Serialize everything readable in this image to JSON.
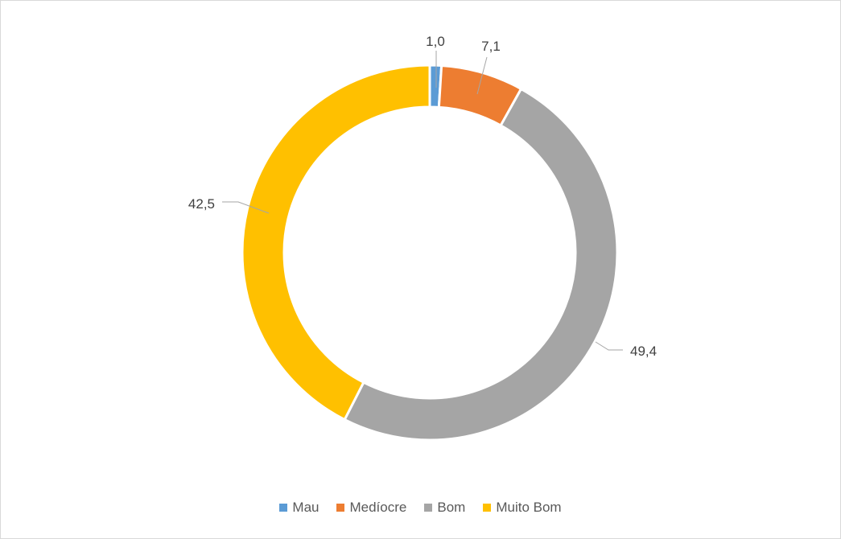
{
  "chart_data": {
    "type": "pie",
    "variant": "donut",
    "categories": [
      "Mau",
      "Medíocre",
      "Bom",
      "Muito Bom"
    ],
    "values": [
      1.0,
      7.1,
      49.4,
      42.5
    ],
    "value_labels": [
      "1,0",
      "7,1",
      "49,4",
      "42,5"
    ],
    "colors": [
      "#5b9bd5",
      "#ed7d31",
      "#a5a5a5",
      "#ffc000"
    ],
    "legend_position": "bottom",
    "title": ""
  }
}
